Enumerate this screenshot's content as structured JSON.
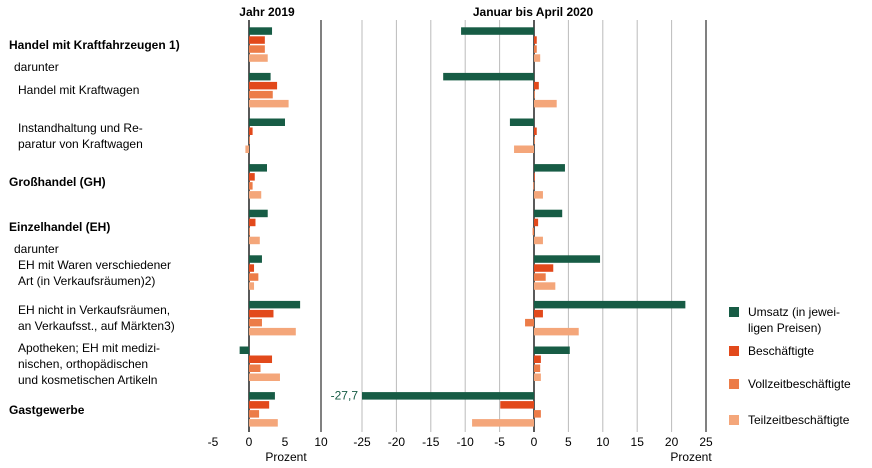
{
  "chart_data": [
    {
      "type": "bar",
      "orientation": "horizontal",
      "title": "Jahr 2019",
      "xlabel": "Prozent",
      "categories": [
        "Handel mit Kraftfahrzeugen 1)",
        "Handel mit Kraftwagen",
        "Instandhaltung und Re-\nparatur von Kraftwagen",
        "Großhandel (GH)",
        "Einzelhandel (EH)",
        "EH mit Waren verschiedener\nArt (in Verkaufsräumen)2)",
        "EH nicht in Verkaufsräumen,\nan Verkaufsst., auf Märkten3)",
        "Apotheken; EH mit medizi-\nnischen, orthopädischen\nund kosmetischen Artikeln",
        "Gastgewerbe"
      ],
      "sublabels": [
        "darunter",
        "darunter"
      ],
      "xlim": [
        -5,
        10
      ],
      "xticks": [
        -5,
        0,
        5,
        10
      ],
      "series": [
        {
          "name": "Umsatz (in jewei-\nligen Preisen)",
          "color": "#175c45",
          "values": [
            3.2,
            3.0,
            5.0,
            2.5,
            2.6,
            1.8,
            7.1,
            -1.3,
            3.6
          ]
        },
        {
          "name": "Beschäftigte",
          "color": "#e2491b",
          "values": [
            2.2,
            3.9,
            0.5,
            0.8,
            0.9,
            0.7,
            3.4,
            3.2,
            2.8
          ]
        },
        {
          "name": "Vollzeitbeschäftigte",
          "color": "#ec7c48",
          "values": [
            2.2,
            3.3,
            0,
            0.5,
            0.1,
            1.3,
            1.8,
            1.6,
            1.4
          ]
        },
        {
          "name": "Teilzeitbeschäftigte",
          "color": "#f4a67a",
          "values": [
            2.6,
            5.5,
            -0.5,
            1.7,
            1.5,
            0.7,
            6.5,
            4.3,
            4.0
          ]
        }
      ]
    },
    {
      "type": "bar",
      "orientation": "horizontal",
      "title": "Januar bis April 2020",
      "xlabel": "Prozent",
      "xlim": [
        -25,
        25
      ],
      "xticks": [
        -25,
        -20,
        -15,
        -10,
        -5,
        0,
        5,
        10,
        15,
        20,
        25
      ],
      "series": [
        {
          "color": "#175c45",
          "values": [
            -10.6,
            -13.2,
            -3.5,
            4.5,
            4.1,
            9.6,
            22.0,
            5.2,
            -27.7
          ],
          "value_labels": [
            null,
            null,
            null,
            null,
            null,
            null,
            null,
            null,
            "-27,7"
          ]
        },
        {
          "color": "#e2491b",
          "values": [
            0.4,
            0.7,
            0.4,
            0,
            0.6,
            2.8,
            1.3,
            1.0,
            -4.9
          ]
        },
        {
          "color": "#ec7c48",
          "values": [
            0.4,
            0,
            0,
            -0.1,
            -0.2,
            1.7,
            -1.3,
            0.9,
            1.0
          ]
        },
        {
          "color": "#f4a67a",
          "values": [
            0.9,
            3.3,
            -2.9,
            1.3,
            1.3,
            3.1,
            6.5,
            1.0,
            -9.0
          ]
        }
      ]
    }
  ]
}
